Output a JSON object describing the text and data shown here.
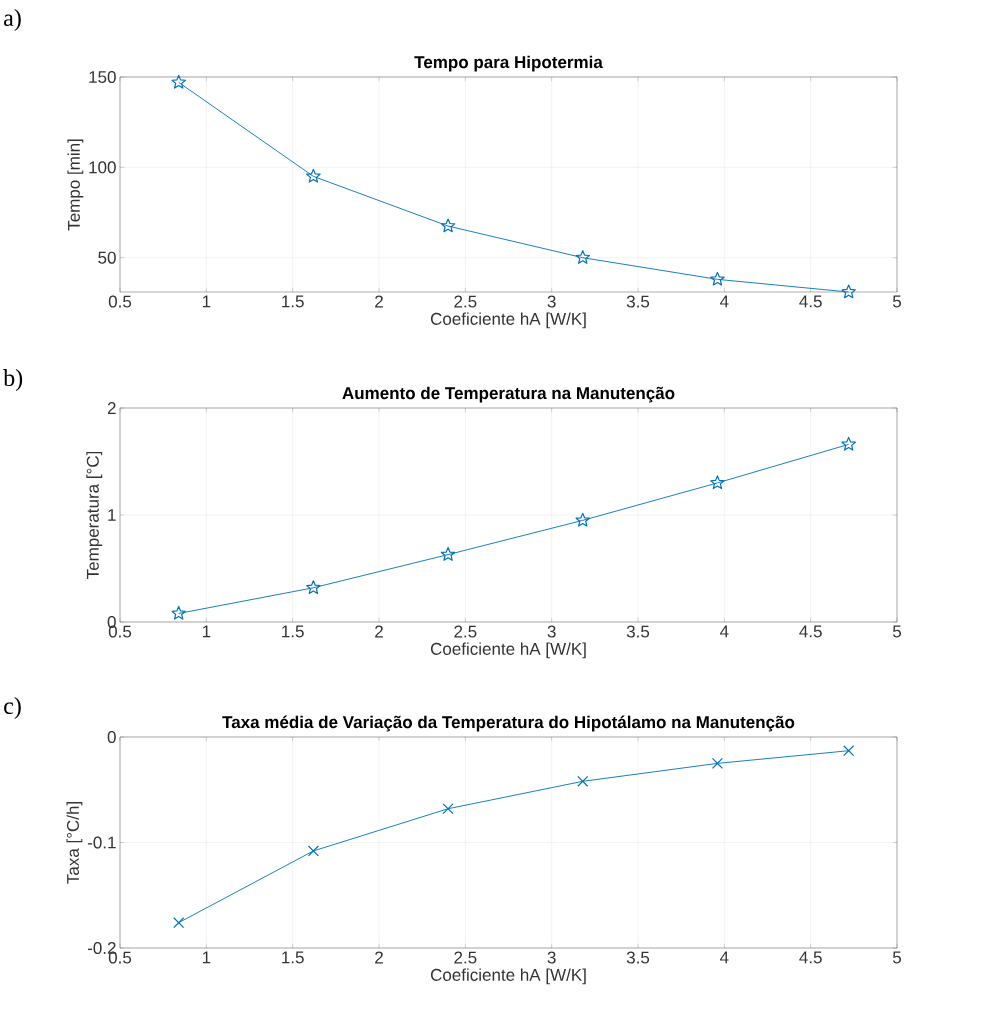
{
  "chart_data": [
    {
      "type": "line",
      "title": "Tempo para Hipotermia",
      "xlabel": "Coeficiente hA [W/K]",
      "ylabel": "Tempo [min]",
      "annotations": [
        "a)"
      ],
      "x": [
        0.84,
        1.62,
        2.4,
        3.18,
        3.96,
        4.72
      ],
      "series": [
        {
          "color": "#0072bd",
          "values": [
            147,
            95,
            67.5,
            50,
            38,
            31
          ]
        }
      ],
      "xlim": [
        0.5,
        5
      ],
      "ylim": [
        31,
        150
      ],
      "xticks": [
        0.5,
        1,
        1.5,
        2,
        2.5,
        3,
        3.5,
        4,
        4.5,
        5
      ],
      "yticks": [
        50,
        100,
        150
      ],
      "grid": true,
      "marker": "star",
      "line_style": "solid"
    },
    {
      "type": "line",
      "title": "Aumento de Temperatura na Manutenção",
      "xlabel": "Coeficiente hA [W/K]",
      "ylabel": "Temperatura [°C]",
      "annotations": [
        "b)"
      ],
      "x": [
        0.84,
        1.62,
        2.4,
        3.18,
        3.96,
        4.72
      ],
      "series": [
        {
          "color": "#0072bd",
          "values": [
            0.08,
            0.32,
            0.63,
            0.95,
            1.3,
            1.66
          ]
        }
      ],
      "xlim": [
        0.5,
        5
      ],
      "ylim": [
        0,
        2
      ],
      "xticks": [
        0.5,
        1,
        1.5,
        2,
        2.5,
        3,
        3.5,
        4,
        4.5,
        5
      ],
      "yticks": [
        0,
        1,
        2
      ],
      "grid": true,
      "marker": "star",
      "line_style": "solid"
    },
    {
      "type": "line",
      "title": "Taxa média de Variação da Temperatura do Hipotálamo na Manutenção",
      "xlabel": "Coeficiente hA [W/K]",
      "ylabel": "Taxa [°C/h]",
      "annotations": [
        "c)"
      ],
      "x": [
        0.84,
        1.62,
        2.4,
        3.18,
        3.96,
        4.72
      ],
      "series": [
        {
          "color": "#0072bd",
          "values": [
            -0.176,
            -0.108,
            -0.068,
            -0.042,
            -0.025,
            -0.013
          ]
        }
      ],
      "xlim": [
        0.5,
        5
      ],
      "ylim": [
        -0.2,
        0
      ],
      "xticks": [
        0.5,
        1,
        1.5,
        2,
        2.5,
        3,
        3.5,
        4,
        4.5,
        5
      ],
      "yticks": [
        -0.2,
        -0.1,
        0
      ],
      "grid": true,
      "marker": "cross",
      "line_style": "solid"
    }
  ]
}
